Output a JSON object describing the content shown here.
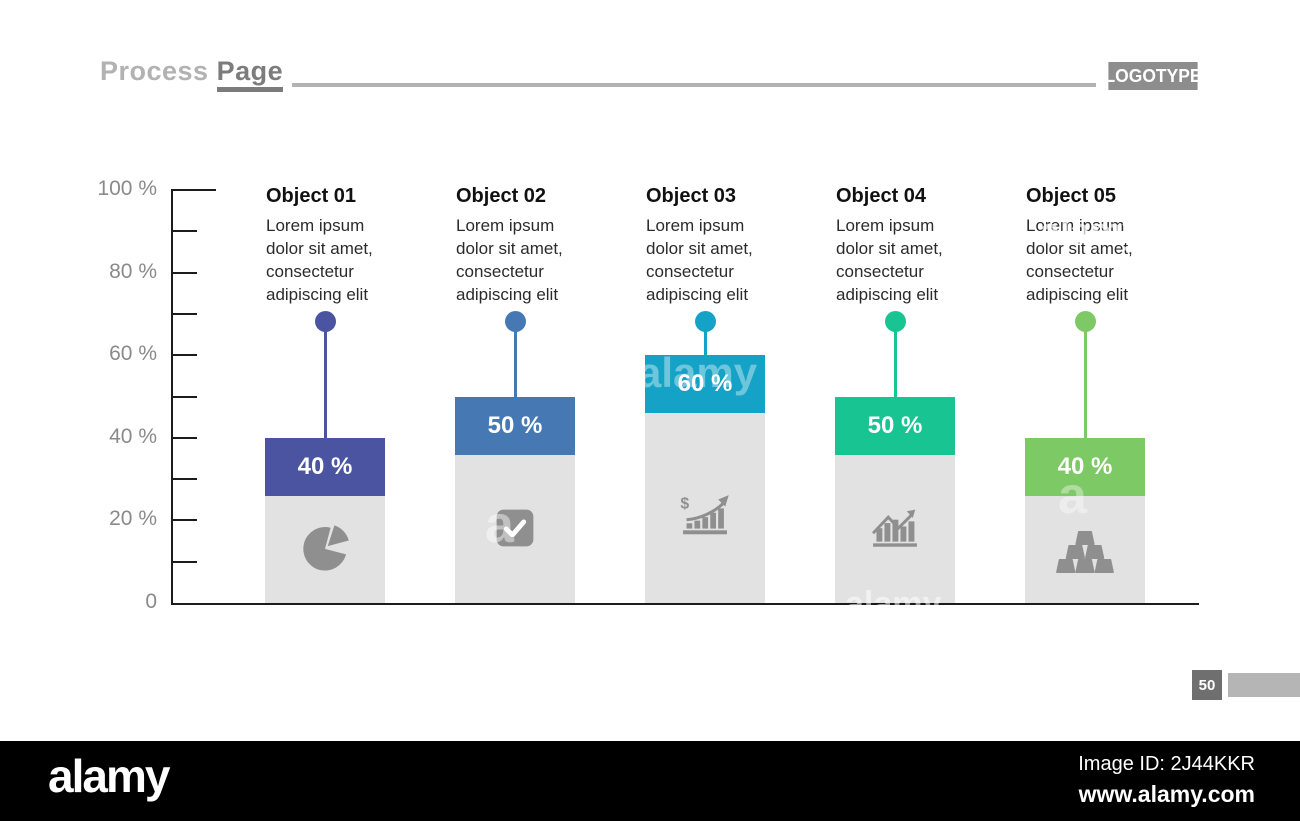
{
  "header": {
    "title_light": "Process",
    "title_dark": "Page",
    "logotype": "LOGOTYPE"
  },
  "page_number": "50",
  "chart_data": {
    "type": "bar",
    "title": "",
    "categories": [
      "Object 01",
      "Object 02",
      "Object 03",
      "Object 04",
      "Object 05"
    ],
    "values": [
      40,
      50,
      60,
      50,
      40
    ],
    "value_labels": [
      "40 %",
      "50 %",
      "60 %",
      "50 %",
      "40 %"
    ],
    "descriptions": [
      "Lorem ipsum dolor sit amet, consectetur adipiscing elit",
      "Lorem ipsum dolor sit amet, consectetur adipiscing elit",
      "Lorem ipsum dolor sit amet, consectetur adipiscing elit",
      "Lorem ipsum dolor sit amet, consectetur adipiscing elit",
      "Lorem ipsum dolor sit amet, consectetur adipiscing elit"
    ],
    "colors": [
      "#4a54a0",
      "#4679b4",
      "#14a3c6",
      "#19c493",
      "#7dc965"
    ],
    "icons": [
      "pie-chart-icon",
      "check-square-icon",
      "money-growth-icon",
      "bar-graph-arrow-icon",
      "gold-bars-icon"
    ],
    "track_color": "#e2e2e2",
    "icon_color": "#8f8f8f",
    "xlabel": "",
    "ylabel": "",
    "ylim": [
      0,
      100
    ],
    "yticks": [
      "100 %",
      "80 %",
      "60 %",
      "40 %",
      "20 %",
      "0"
    ],
    "grid": false,
    "legend": false
  },
  "watermark": {
    "brand": "alamy",
    "image_id": "Image ID: 2J44KKR",
    "url": "www.alamy.com",
    "ghosts": [
      "alamy",
      "alamy",
      "alamy",
      "a",
      "a"
    ]
  }
}
